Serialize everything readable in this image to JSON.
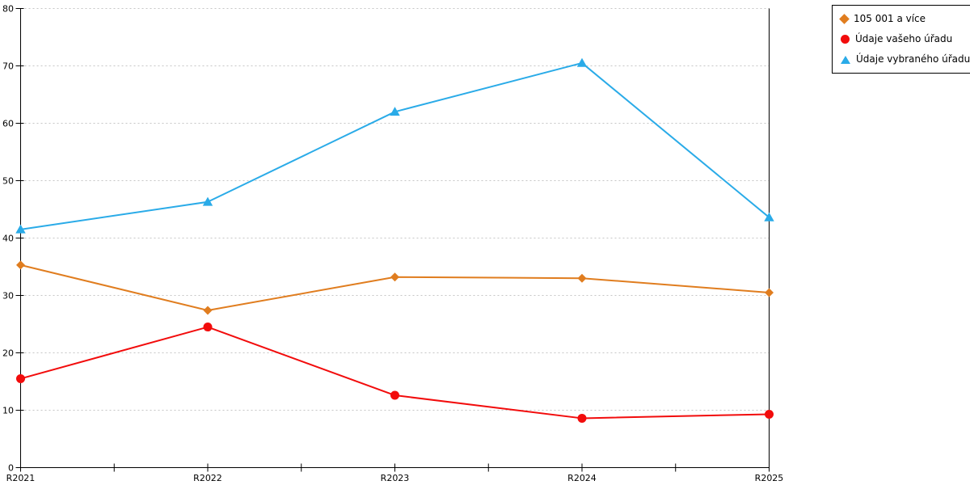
{
  "chart_data": {
    "type": "line",
    "title": "",
    "xlabel": "",
    "ylabel": "",
    "categories": [
      "R2021",
      "R2022",
      "R2023",
      "R2024",
      "R2025"
    ],
    "series": [
      {
        "name": "105 001 a více",
        "marker": "diamond",
        "color": "#e07d1f",
        "values": [
          35.3,
          27.4,
          33.2,
          33.0,
          30.5
        ]
      },
      {
        "name": "Údaje vašeho úřadu",
        "marker": "circle",
        "color": "#f20c0c",
        "values": [
          15.5,
          24.5,
          12.6,
          8.6,
          9.3
        ]
      },
      {
        "name": "Údaje vybraného úřadu",
        "marker": "triangle",
        "color": "#2aabe8",
        "values": [
          41.5,
          46.3,
          62.0,
          70.5,
          43.6
        ]
      }
    ],
    "ylim": [
      0,
      80
    ],
    "yticks": [
      0,
      10,
      20,
      30,
      40,
      50,
      60,
      70,
      80
    ],
    "grid": true,
    "gridline_color": "#c6c6c6",
    "axis_color": "#000000",
    "legend_position": "top-right-outside",
    "legend_border_color": "#000000"
  }
}
